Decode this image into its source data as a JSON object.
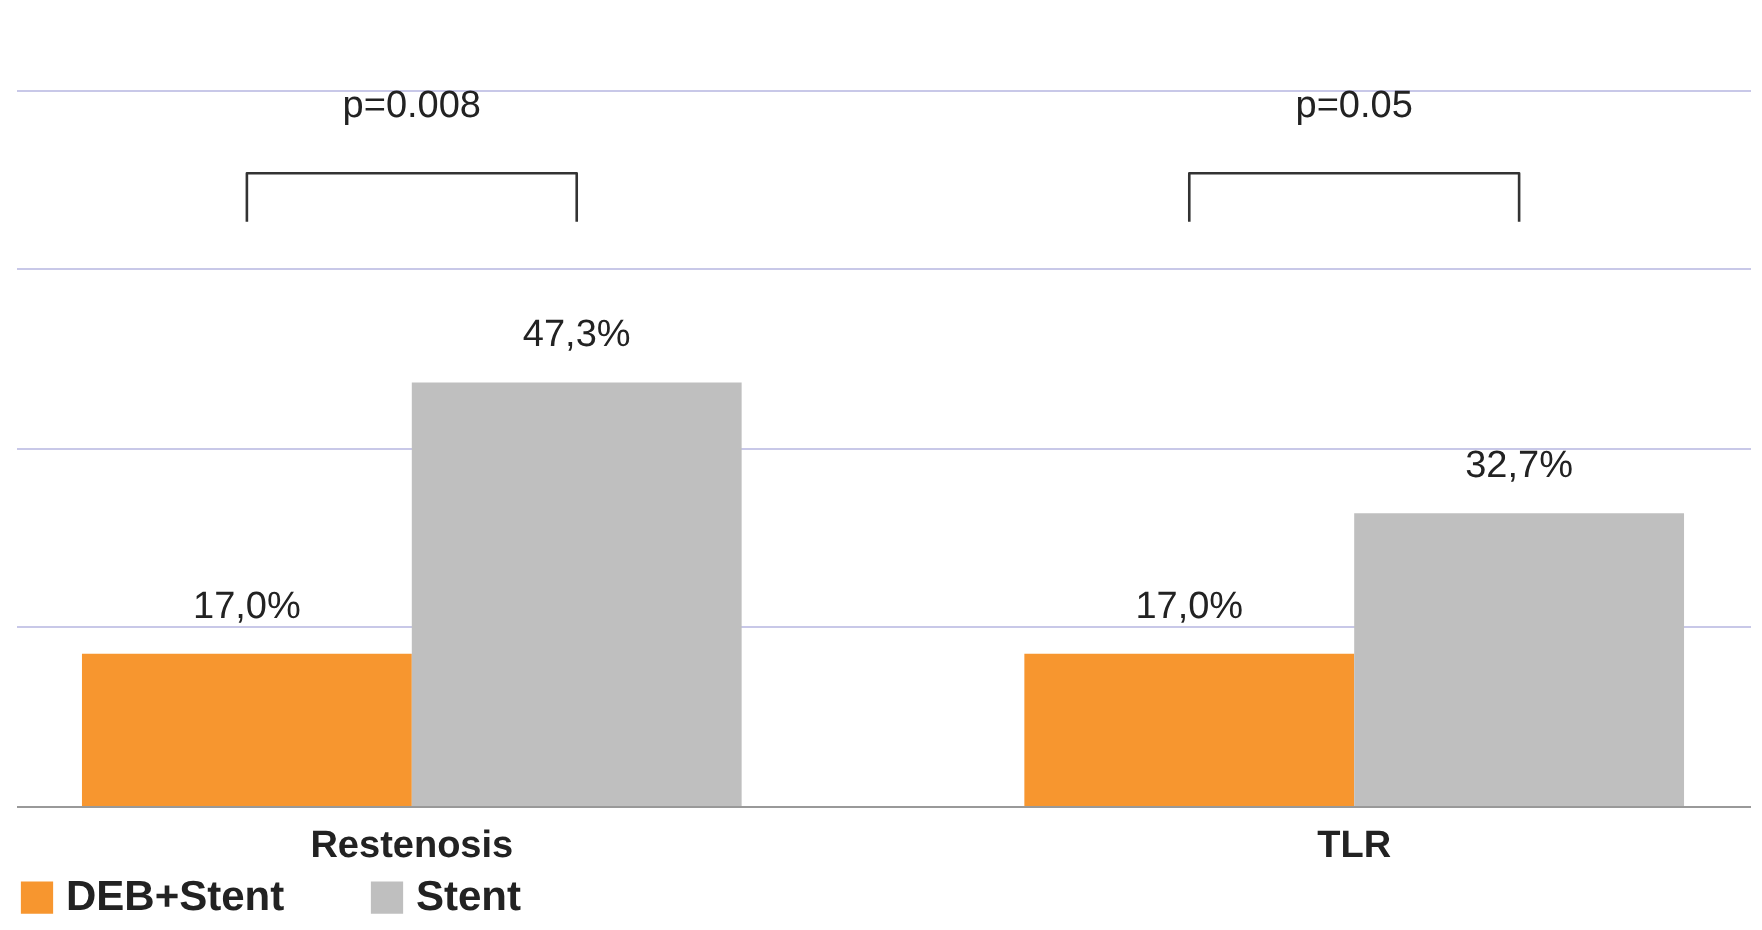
{
  "chart_data": {
    "type": "bar",
    "categories": [
      "Restenosis",
      "TLR"
    ],
    "series": [
      {
        "name": "DEB+Stent",
        "color": "#f7962f",
        "values": [
          17.0,
          17.0
        ],
        "value_labels": [
          "17,0%",
          "17,0%"
        ]
      },
      {
        "name": "Stent",
        "color": "#bfbfbf",
        "values": [
          47.3,
          32.7
        ],
        "value_labels": [
          "47,3%",
          "32,7%"
        ]
      }
    ],
    "ylim": [
      0,
      90
    ],
    "yticks": [
      {
        "value": 0,
        "label": null
      },
      {
        "value": 20,
        "label": null
      },
      {
        "value": 40,
        "label": null
      },
      {
        "value": 60,
        "label": null
      },
      {
        "value": 80,
        "label": null
      }
    ],
    "grid": "y",
    "legend": "bottom",
    "tick_labels": "x",
    "annotations": [
      "p=0.008",
      "p=0.05"
    ]
  }
}
